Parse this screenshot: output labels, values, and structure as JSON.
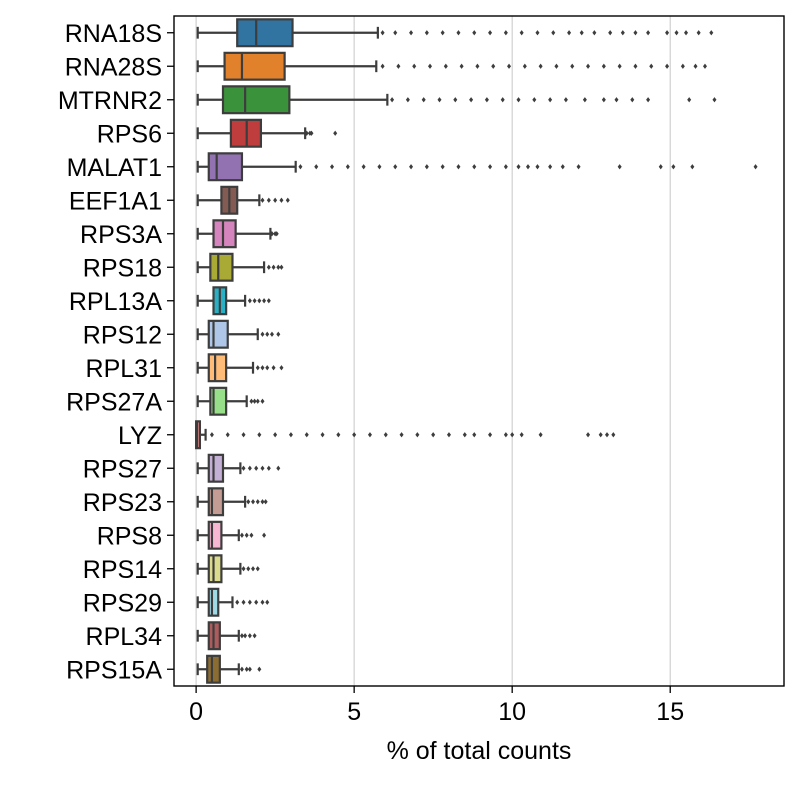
{
  "chart_data": {
    "type": "boxplot",
    "orientation": "horizontal",
    "xlabel": "% of total counts",
    "xlim": [
      -0.7,
      18.6
    ],
    "xticks": [
      0,
      5,
      10,
      15
    ],
    "xtick_labels": [
      "0",
      "5",
      "10",
      "15"
    ],
    "grid": "vertical",
    "legend": "none",
    "series": [
      {
        "category": "RNA18S",
        "color": "#3274a1",
        "whisker_low": 0.05,
        "q1": 1.3,
        "median": 1.9,
        "q3": 3.05,
        "whisker_high": 5.75,
        "fliers": [
          5.9,
          6.3,
          6.8,
          7.3,
          7.8,
          8.3,
          8.8,
          9.3,
          9.8,
          10.3,
          10.8,
          11.3,
          11.8,
          12.2,
          12.6,
          13.1,
          13.5,
          13.9,
          14.3,
          14.9,
          15.2,
          15.5,
          15.9,
          16.3
        ]
      },
      {
        "category": "RNA28S",
        "color": "#e1812c",
        "whisker_low": 0.05,
        "q1": 0.9,
        "median": 1.45,
        "q3": 2.8,
        "whisker_high": 5.7,
        "fliers": [
          5.9,
          6.4,
          6.9,
          7.4,
          7.9,
          8.4,
          8.9,
          9.4,
          9.9,
          10.4,
          10.9,
          11.4,
          11.9,
          12.4,
          12.9,
          13.4,
          13.9,
          14.4,
          14.9,
          15.4,
          15.8,
          16.1
        ]
      },
      {
        "category": "MTRNR2",
        "color": "#3a923a",
        "whisker_low": 0.05,
        "q1": 0.85,
        "median": 1.55,
        "q3": 2.95,
        "whisker_high": 6.05,
        "fliers": [
          6.2,
          6.7,
          7.2,
          7.7,
          8.2,
          8.7,
          9.2,
          9.7,
          10.2,
          10.7,
          11.2,
          11.7,
          12.3,
          12.9,
          13.3,
          13.8,
          14.3,
          15.6,
          16.4
        ]
      },
      {
        "category": "RPS6",
        "color": "#c03d3e",
        "whisker_low": 0.05,
        "q1": 1.1,
        "median": 1.6,
        "q3": 2.05,
        "whisker_high": 3.45,
        "fliers": [
          3.5,
          3.6,
          3.65,
          4.4
        ]
      },
      {
        "category": "MALAT1",
        "color": "#9372b2",
        "whisker_low": 0.05,
        "q1": 0.4,
        "median": 0.65,
        "q3": 1.45,
        "whisker_high": 3.15,
        "fliers": [
          3.3,
          3.8,
          4.3,
          4.8,
          5.3,
          5.8,
          6.3,
          6.8,
          7.3,
          7.8,
          8.3,
          8.8,
          9.3,
          9.8,
          10.2,
          10.5,
          10.8,
          11.2,
          11.6,
          12.1,
          13.4,
          14.7,
          15.1,
          15.7,
          17.7
        ]
      },
      {
        "category": "EEF1A1",
        "color": "#845b53",
        "whisker_low": 0.05,
        "q1": 0.8,
        "median": 1.05,
        "q3": 1.3,
        "whisker_high": 2.0,
        "fliers": [
          2.1,
          2.3,
          2.5,
          2.7,
          2.9
        ]
      },
      {
        "category": "RPS3A",
        "color": "#d684bd",
        "whisker_low": 0.05,
        "q1": 0.55,
        "median": 0.85,
        "q3": 1.25,
        "whisker_high": 2.35,
        "fliers": [
          2.4,
          2.5,
          2.55
        ]
      },
      {
        "category": "RPS18",
        "color": "#a9aa35",
        "whisker_low": 0.05,
        "q1": 0.45,
        "median": 0.7,
        "q3": 1.15,
        "whisker_high": 2.15,
        "fliers": [
          2.3,
          2.45,
          2.6,
          2.7
        ]
      },
      {
        "category": "RPL13A",
        "color": "#2ab0c5",
        "whisker_low": 0.05,
        "q1": 0.55,
        "median": 0.75,
        "q3": 0.95,
        "whisker_high": 1.55,
        "fliers": [
          1.7,
          1.85,
          2.0,
          2.15,
          2.3
        ]
      },
      {
        "category": "RPS12",
        "color": "#aec7e8",
        "whisker_low": 0.05,
        "q1": 0.4,
        "median": 0.55,
        "q3": 1.0,
        "whisker_high": 1.95,
        "fliers": [
          2.1,
          2.25,
          2.4,
          2.6
        ]
      },
      {
        "category": "RPL31",
        "color": "#ffbb78",
        "whisker_low": 0.05,
        "q1": 0.4,
        "median": 0.6,
        "q3": 0.95,
        "whisker_high": 1.8,
        "fliers": [
          1.95,
          2.1,
          2.25,
          2.45,
          2.7
        ]
      },
      {
        "category": "RPS27A",
        "color": "#98df8a",
        "whisker_low": 0.05,
        "q1": 0.45,
        "median": 0.55,
        "q3": 0.95,
        "whisker_high": 1.6,
        "fliers": [
          1.75,
          1.85,
          1.95,
          2.1
        ]
      },
      {
        "category": "LYZ",
        "color": "#ff9896",
        "whisker_low": 0.0,
        "q1": 0.0,
        "median": 0.03,
        "q3": 0.12,
        "whisker_high": 0.3,
        "fliers": [
          0.5,
          1.0,
          1.5,
          2.0,
          2.5,
          3.0,
          3.5,
          4.0,
          4.5,
          5.0,
          5.5,
          6.0,
          6.5,
          7.0,
          7.5,
          8.0,
          8.5,
          8.8,
          9.3,
          9.8,
          10.0,
          10.3,
          10.9,
          12.4,
          12.8,
          13.0,
          13.2
        ]
      },
      {
        "category": "RPS27",
        "color": "#c5b0d5",
        "whisker_low": 0.05,
        "q1": 0.4,
        "median": 0.55,
        "q3": 0.85,
        "whisker_high": 1.4,
        "fliers": [
          1.5,
          1.7,
          1.9,
          2.1,
          2.3,
          2.6
        ]
      },
      {
        "category": "RPS23",
        "color": "#c49c94",
        "whisker_low": 0.05,
        "q1": 0.4,
        "median": 0.5,
        "q3": 0.85,
        "whisker_high": 1.55,
        "fliers": [
          1.65,
          1.8,
          1.95,
          2.1,
          2.2
        ]
      },
      {
        "category": "RPS8",
        "color": "#f7b6d2",
        "whisker_low": 0.05,
        "q1": 0.4,
        "median": 0.5,
        "q3": 0.8,
        "whisker_high": 1.35,
        "fliers": [
          1.45,
          1.6,
          1.75,
          2.15
        ]
      },
      {
        "category": "RPS14",
        "color": "#dbdb8d",
        "whisker_low": 0.05,
        "q1": 0.4,
        "median": 0.55,
        "q3": 0.8,
        "whisker_high": 1.4,
        "fliers": [
          1.5,
          1.65,
          1.8,
          1.95
        ]
      },
      {
        "category": "RPS29",
        "color": "#9edae5",
        "whisker_low": 0.05,
        "q1": 0.4,
        "median": 0.5,
        "q3": 0.7,
        "whisker_high": 1.15,
        "fliers": [
          1.3,
          1.5,
          1.7,
          1.9,
          2.1,
          2.25
        ]
      },
      {
        "category": "RPL34",
        "color": "#ad5c5e",
        "whisker_low": 0.05,
        "q1": 0.4,
        "median": 0.55,
        "q3": 0.75,
        "whisker_high": 1.35,
        "fliers": [
          1.45,
          1.55,
          1.7,
          1.85
        ]
      },
      {
        "category": "RPS15A",
        "color": "#8c6d31",
        "whisker_low": 0.05,
        "q1": 0.35,
        "median": 0.5,
        "q3": 0.75,
        "whisker_high": 1.35,
        "fliers": [
          1.45,
          1.6,
          1.7,
          2.0
        ]
      }
    ]
  }
}
